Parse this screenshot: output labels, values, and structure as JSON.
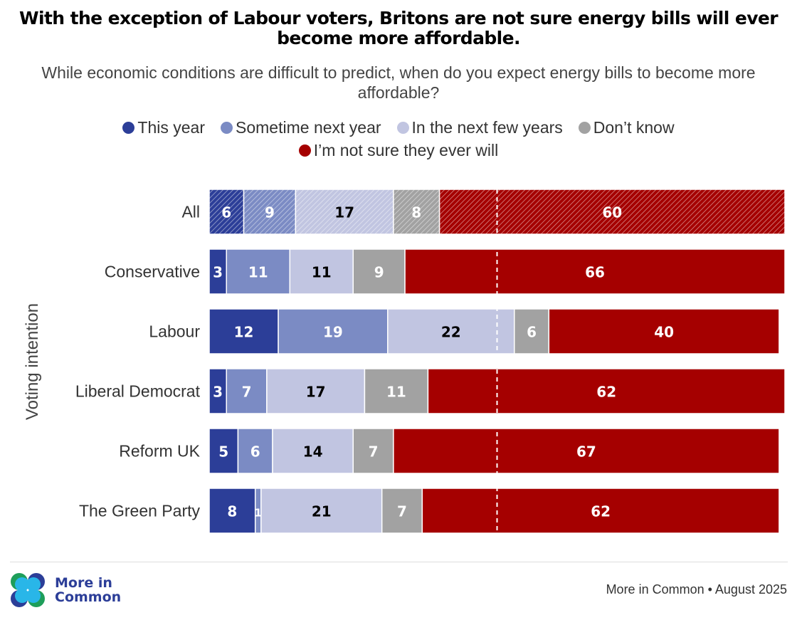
{
  "title": "With the exception of Labour voters, Britons are not sure energy bills will ever become more affordable.",
  "subtitle": "While economic conditions are difficult to predict, when do you expect energy bills to become more affordable?",
  "legend": [
    {
      "label": "This year",
      "color": "#2c3e98"
    },
    {
      "label": "Sometime next year",
      "color": "#7b8bc4"
    },
    {
      "label": "In the next few years",
      "color": "#c1c5e1"
    },
    {
      "label": "Don’t know",
      "color": "#a2a2a2"
    },
    {
      "label": "I’m not sure they ever will",
      "color": "#a50000"
    }
  ],
  "chart_data": {
    "type": "bar",
    "orientation": "horizontal",
    "stacked": true,
    "title": "With the exception of Labour voters, Britons are not sure energy bills will ever become more affordable.",
    "subtitle": "While economic conditions are difficult to predict, when do you expect energy bills to become more affordable?",
    "xlabel": "",
    "ylabel": "Voting intention",
    "xlim": [
      0,
      100
    ],
    "reference_line": {
      "value": 50,
      "style": "dashed",
      "color": "#ffffff"
    },
    "categories": [
      "All",
      "Conservative",
      "Labour",
      "Liberal Democrat",
      "Reform UK",
      "The Green Party"
    ],
    "hatched_categories": [
      "All"
    ],
    "series": [
      {
        "name": "This year",
        "color": "#2c3e98",
        "label_color": "#ffffff",
        "values": [
          6,
          3,
          12,
          3,
          5,
          8
        ]
      },
      {
        "name": "Sometime next year",
        "color": "#7b8bc4",
        "label_color": "#ffffff",
        "values": [
          9,
          11,
          19,
          7,
          6,
          1
        ]
      },
      {
        "name": "In the next few years",
        "color": "#c1c5e1",
        "label_color": "#000000",
        "values": [
          17,
          11,
          22,
          17,
          14,
          21
        ]
      },
      {
        "name": "Don’t know",
        "color": "#a2a2a2",
        "label_color": "#ffffff",
        "values": [
          8,
          9,
          6,
          11,
          7,
          7
        ]
      },
      {
        "name": "I’m not sure they ever will",
        "color": "#a50000",
        "label_color": "#ffffff",
        "values": [
          60,
          66,
          40,
          62,
          67,
          62
        ]
      }
    ],
    "legend_position": "top-center",
    "grid": false
  },
  "footer": {
    "logo_line1": "More in",
    "logo_line2": "Common",
    "source": "More in Common • August 2025"
  }
}
